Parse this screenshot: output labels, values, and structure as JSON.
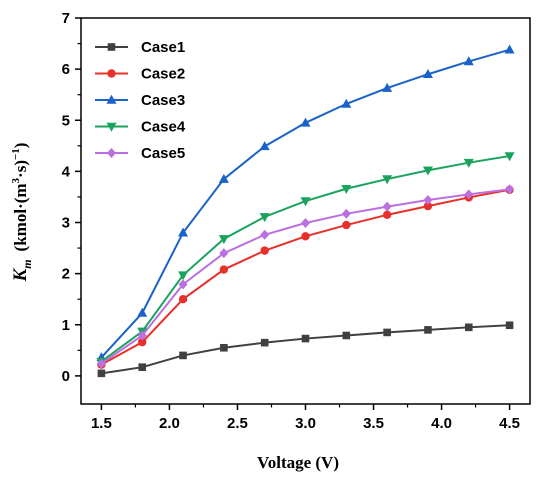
{
  "chart_data": {
    "type": "line",
    "x": [
      1.5,
      1.8,
      2.1,
      2.4,
      2.7,
      3.0,
      3.3,
      3.6,
      3.9,
      4.2,
      4.5
    ],
    "series": [
      {
        "name": "Case1",
        "color": "#404040",
        "marker": "square",
        "values": [
          0.05,
          0.17,
          0.4,
          0.55,
          0.65,
          0.73,
          0.79,
          0.85,
          0.9,
          0.95,
          0.99
        ]
      },
      {
        "name": "Case2",
        "color": "#e8302a",
        "marker": "circle",
        "values": [
          0.22,
          0.66,
          1.5,
          2.08,
          2.45,
          2.73,
          2.95,
          3.15,
          3.32,
          3.49,
          3.64
        ]
      },
      {
        "name": "Case3",
        "color": "#1a62c9",
        "marker": "triangle-up",
        "values": [
          0.36,
          1.23,
          2.8,
          3.85,
          4.49,
          4.95,
          5.32,
          5.63,
          5.9,
          6.15,
          6.38
        ]
      },
      {
        "name": "Case4",
        "color": "#1aa35e",
        "marker": "triangle-down",
        "values": [
          0.28,
          0.87,
          1.97,
          2.68,
          3.11,
          3.42,
          3.66,
          3.85,
          4.02,
          4.17,
          4.3
        ]
      },
      {
        "name": "Case5",
        "color": "#bb6fe0",
        "marker": "diamond",
        "values": [
          0.24,
          0.79,
          1.79,
          2.4,
          2.76,
          2.99,
          3.17,
          3.31,
          3.44,
          3.55,
          3.65
        ]
      }
    ],
    "xlim": [
      1.35,
      4.65
    ],
    "ylim": [
      -0.55,
      7
    ],
    "xticks": [
      1.5,
      2.0,
      2.5,
      3.0,
      3.5,
      4.0,
      4.5
    ],
    "xtick_labels": [
      "1.5",
      "2.0",
      "2.5",
      "3.0",
      "3.5",
      "4.0",
      "4.5"
    ],
    "yticks": [
      0,
      1,
      2,
      3,
      4,
      5,
      6,
      7
    ],
    "ytick_labels": [
      "0",
      "1",
      "2",
      "3",
      "4",
      "5",
      "6",
      "7"
    ],
    "xlabel": "Voltage (V)",
    "ylabel": {
      "symbol": "K",
      "subscript": "m",
      "unit_prefix": "(kmol·(m",
      "unit_exp1": "3",
      "unit_mid": "·s)",
      "unit_exp2": "−1",
      "unit_suffix": ")"
    },
    "legend_position": "top-left",
    "grid": false,
    "title": ""
  }
}
